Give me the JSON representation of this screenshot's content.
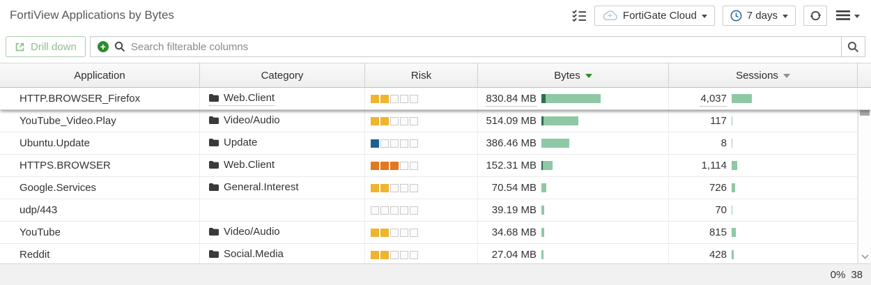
{
  "header": {
    "title": "FortiView Applications by Bytes",
    "device_button": {
      "label": "FortiGate Cloud"
    },
    "time_button": {
      "label": "7 days"
    }
  },
  "toolbar": {
    "drill_down_label": "Drill down",
    "search_placeholder": "Search filterable columns",
    "search_value": ""
  },
  "table": {
    "columns": {
      "application": "Application",
      "category": "Category",
      "risk": "Risk",
      "bytes": "Bytes",
      "sessions": "Sessions"
    },
    "sort": {
      "active_column": "Bytes",
      "direction": "desc"
    },
    "rows": [
      {
        "application": "HTTP.BROWSER_Firefox",
        "category": "Web.Client",
        "risk_level": 2,
        "risk_color": "#f0b42d",
        "bytes": "830.84 MB",
        "bytes_bar": 85,
        "bytes_bar_dark": 6,
        "sessions": "4,037",
        "sessions_bar": 29,
        "hovered": true
      },
      {
        "application": "YouTube_Video.Play",
        "category": "Video/Audio",
        "risk_level": 2,
        "risk_color": "#f0b42d",
        "bytes": "514.09 MB",
        "bytes_bar": 53,
        "bytes_bar_dark": 3,
        "sessions": "117",
        "sessions_bar": 1,
        "hovered": false
      },
      {
        "application": "Ubuntu.Update",
        "category": "Update",
        "risk_level": 1,
        "risk_color": "#20608f",
        "bytes": "386.46 MB",
        "bytes_bar": 40,
        "bytes_bar_dark": 0,
        "sessions": "8",
        "sessions_bar": 1,
        "hovered": false
      },
      {
        "application": "HTTPS.BROWSER",
        "category": "Web.Client",
        "risk_level": 3,
        "risk_color": "#e2791f",
        "bytes": "152.31 MB",
        "bytes_bar": 16,
        "bytes_bar_dark": 2,
        "sessions": "1,114",
        "sessions_bar": 8,
        "hovered": false
      },
      {
        "application": "Google.Services",
        "category": "General.Interest",
        "risk_level": 2,
        "risk_color": "#f0b42d",
        "bytes": "70.54 MB",
        "bytes_bar": 7,
        "bytes_bar_dark": 0,
        "sessions": "726",
        "sessions_bar": 5,
        "hovered": false
      },
      {
        "application": "udp/443",
        "category": "",
        "risk_level": 0,
        "risk_color": "",
        "bytes": "39.19 MB",
        "bytes_bar": 4,
        "bytes_bar_dark": 0,
        "sessions": "70",
        "sessions_bar": 1,
        "hovered": false
      },
      {
        "application": "YouTube",
        "category": "Video/Audio",
        "risk_level": 2,
        "risk_color": "#f0b42d",
        "bytes": "34.68 MB",
        "bytes_bar": 4,
        "bytes_bar_dark": 0,
        "sessions": "815",
        "sessions_bar": 6,
        "hovered": false
      },
      {
        "application": "Reddit",
        "category": "Social.Media",
        "risk_level": 2,
        "risk_color": "#f0b42d",
        "bytes": "27.04 MB",
        "bytes_bar": 3,
        "bytes_bar_dark": 0,
        "sessions": "428",
        "sessions_bar": 3,
        "hovered": false
      }
    ],
    "risk_max_level": 5
  },
  "statusbar": {
    "progress": "0%",
    "count": "38"
  },
  "colors": {
    "accent_green": "#2e8b2e",
    "bar_light_green": "#8fc8a5",
    "bar_dark_green": "#2c6e51",
    "risk_yellow": "#f0b42d",
    "risk_orange": "#e2791f",
    "risk_blue": "#20608f",
    "clock_blue": "#2a6da8",
    "cloud_blue": "#a8c3d6"
  },
  "icons": {
    "column-settings-icon": "checklist ≣✓",
    "cloud-icon": "☁",
    "clock-icon": "🕐",
    "refresh-icon": "⟳",
    "menu-icon": "☰",
    "caret-down-icon": "▾",
    "drill-down-icon": "↗",
    "add-filter-icon": "+",
    "search-icon": "🔍",
    "folder-icon": "📁",
    "sort-desc-icon": "▼",
    "scroll-up-icon": "∧",
    "scroll-down-icon": "∨"
  }
}
